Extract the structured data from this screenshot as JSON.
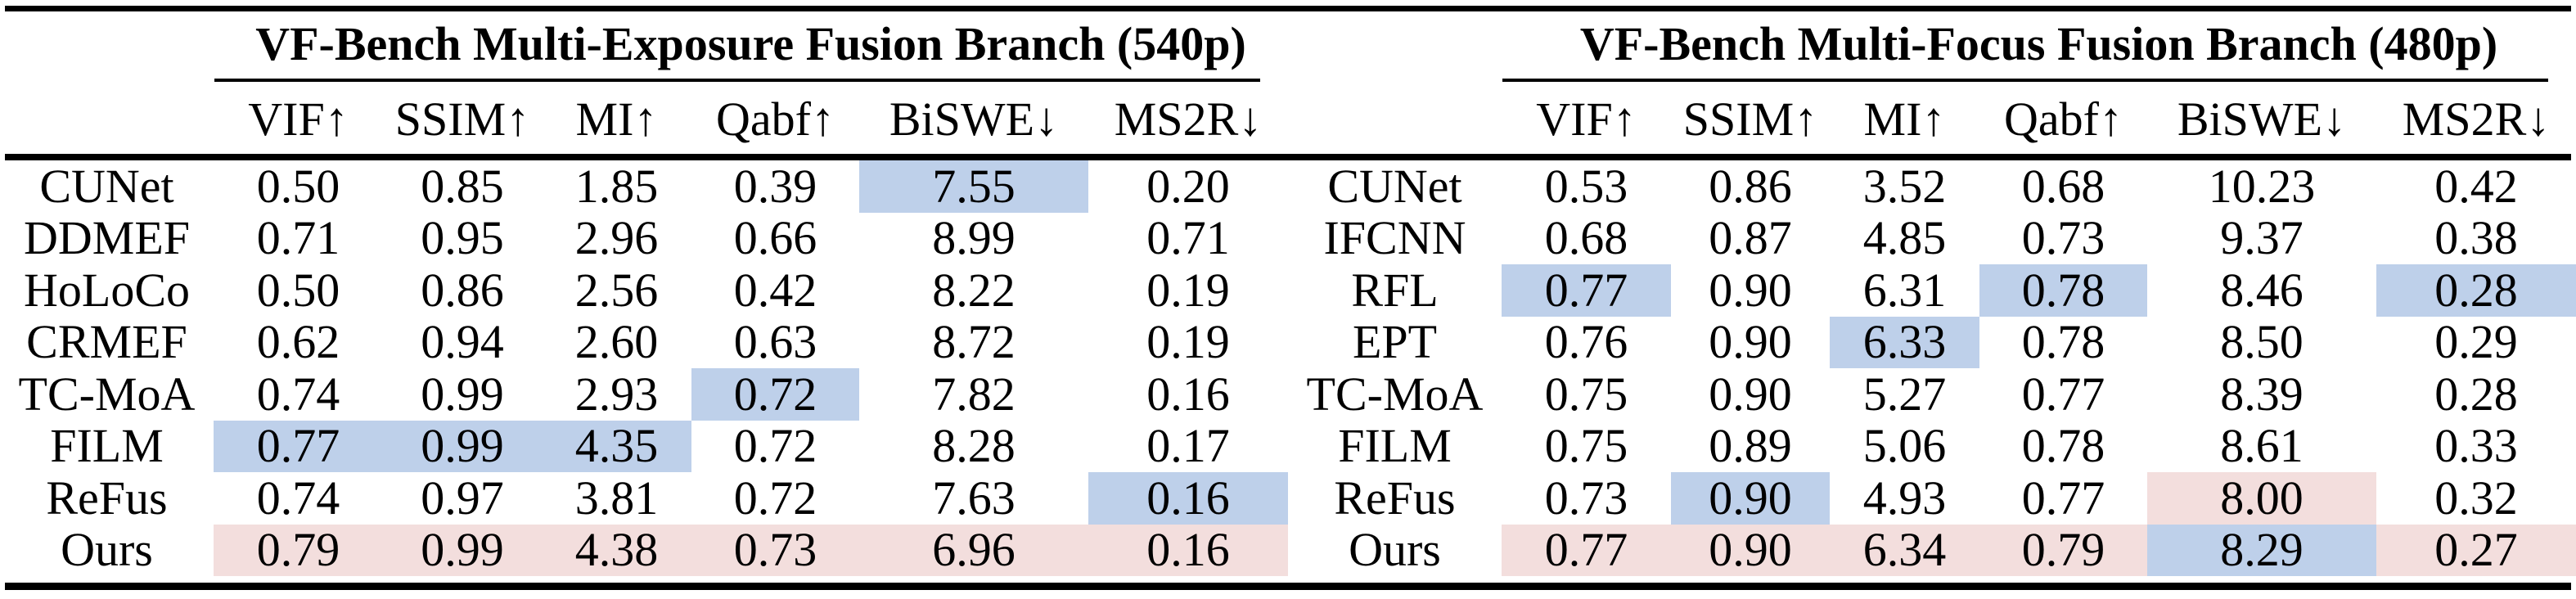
{
  "colors": {
    "best": "#f3dedd",
    "second": "#bed0ea"
  },
  "tables": [
    {
      "title": "VF-Bench Multi-Exposure Fusion Branch (540p)",
      "columns": [
        "VIF↑",
        "SSIM↑",
        "MI↑",
        "Qabf↑",
        "BiSWE↓",
        "MS2R↓"
      ],
      "rows": [
        {
          "method": "CUNet",
          "values": [
            "0.50",
            "0.85",
            "1.85",
            "0.39",
            "7.55",
            "0.20"
          ],
          "hl": [
            "",
            "",
            "",
            "",
            "second",
            ""
          ]
        },
        {
          "method": "DDMEF",
          "values": [
            "0.71",
            "0.95",
            "2.96",
            "0.66",
            "8.99",
            "0.71"
          ],
          "hl": [
            "",
            "",
            "",
            "",
            "",
            ""
          ]
        },
        {
          "method": "HoLoCo",
          "values": [
            "0.50",
            "0.86",
            "2.56",
            "0.42",
            "8.22",
            "0.19"
          ],
          "hl": [
            "",
            "",
            "",
            "",
            "",
            ""
          ]
        },
        {
          "method": "CRMEF",
          "values": [
            "0.62",
            "0.94",
            "2.60",
            "0.63",
            "8.72",
            "0.19"
          ],
          "hl": [
            "",
            "",
            "",
            "",
            "",
            ""
          ]
        },
        {
          "method": "TC-MoA",
          "values": [
            "0.74",
            "0.99",
            "2.93",
            "0.72",
            "7.82",
            "0.16"
          ],
          "hl": [
            "",
            "",
            "",
            "second",
            "",
            ""
          ]
        },
        {
          "method": "FILM",
          "values": [
            "0.77",
            "0.99",
            "4.35",
            "0.72",
            "8.28",
            "0.17"
          ],
          "hl": [
            "second",
            "second",
            "second",
            "",
            "",
            ""
          ]
        },
        {
          "method": "ReFus",
          "values": [
            "0.74",
            "0.97",
            "3.81",
            "0.72",
            "7.63",
            "0.16"
          ],
          "hl": [
            "",
            "",
            "",
            "",
            "",
            "second"
          ]
        },
        {
          "method": "Ours",
          "values": [
            "0.79",
            "0.99",
            "4.38",
            "0.73",
            "6.96",
            "0.16"
          ],
          "hl": [
            "best",
            "best",
            "best",
            "best",
            "best",
            "best"
          ]
        }
      ]
    },
    {
      "title": "VF-Bench Multi-Focus Fusion Branch (480p)",
      "columns": [
        "VIF↑",
        "SSIM↑",
        "MI↑",
        "Qabf↑",
        "BiSWE↓",
        "MS2R↓"
      ],
      "rows": [
        {
          "method": "CUNet",
          "values": [
            "0.53",
            "0.86",
            "3.52",
            "0.68",
            "10.23",
            "0.42"
          ],
          "hl": [
            "",
            "",
            "",
            "",
            "",
            ""
          ]
        },
        {
          "method": "IFCNN",
          "values": [
            "0.68",
            "0.87",
            "4.85",
            "0.73",
            "9.37",
            "0.38"
          ],
          "hl": [
            "",
            "",
            "",
            "",
            "",
            ""
          ]
        },
        {
          "method": "RFL",
          "values": [
            "0.77",
            "0.90",
            "6.31",
            "0.78",
            "8.46",
            "0.28"
          ],
          "hl": [
            "second",
            "",
            "",
            "second",
            "",
            "second"
          ]
        },
        {
          "method": "EPT",
          "values": [
            "0.76",
            "0.90",
            "6.33",
            "0.78",
            "8.50",
            "0.29"
          ],
          "hl": [
            "",
            "",
            "second",
            "",
            "",
            ""
          ]
        },
        {
          "method": "TC-MoA",
          "values": [
            "0.75",
            "0.90",
            "5.27",
            "0.77",
            "8.39",
            "0.28"
          ],
          "hl": [
            "",
            "",
            "",
            "",
            "",
            ""
          ]
        },
        {
          "method": "FILM",
          "values": [
            "0.75",
            "0.89",
            "5.06",
            "0.78",
            "8.61",
            "0.33"
          ],
          "hl": [
            "",
            "",
            "",
            "",
            "",
            ""
          ]
        },
        {
          "method": "ReFus",
          "values": [
            "0.73",
            "0.90",
            "4.93",
            "0.77",
            "8.00",
            "0.32"
          ],
          "hl": [
            "",
            "second",
            "",
            "",
            "best",
            ""
          ]
        },
        {
          "method": "Ours",
          "values": [
            "0.77",
            "0.90",
            "6.34",
            "0.79",
            "8.29",
            "0.27"
          ],
          "hl": [
            "best",
            "best",
            "best",
            "best",
            "second",
            "best"
          ]
        }
      ]
    }
  ]
}
